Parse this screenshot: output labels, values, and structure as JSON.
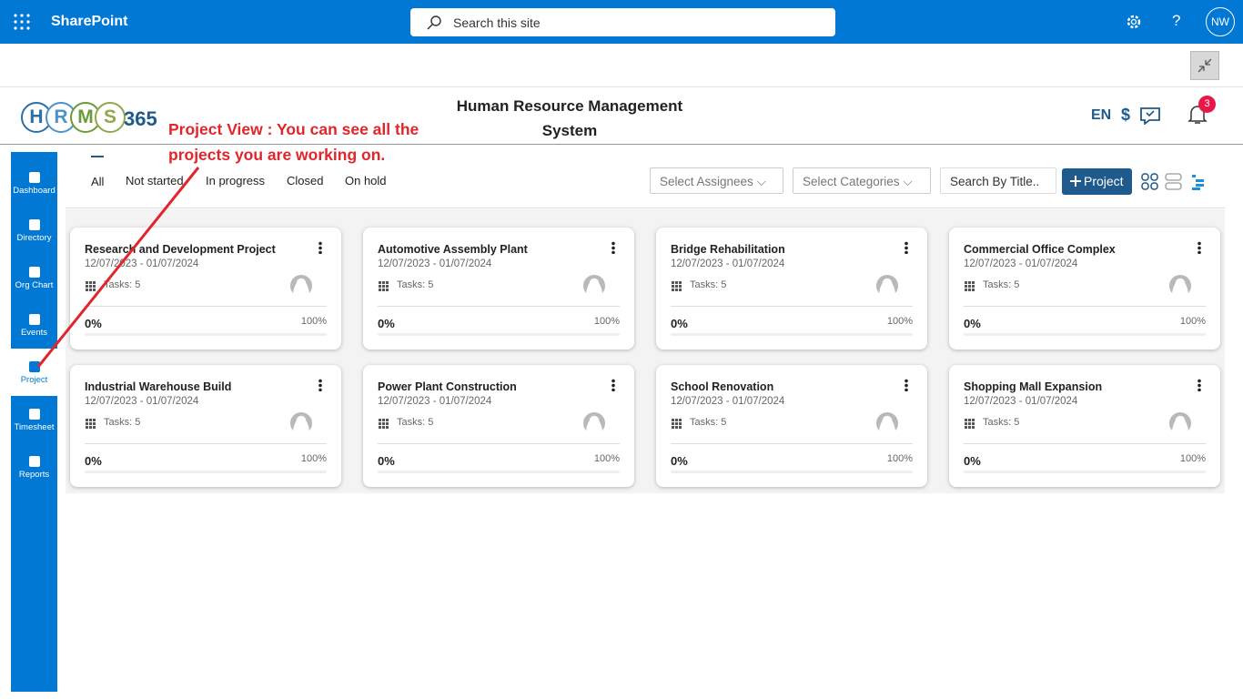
{
  "topbar": {
    "app": "SharePoint",
    "search": "Search this site",
    "user": "NW"
  },
  "header": {
    "logo_letters": [
      "H",
      "R",
      "M",
      "S"
    ],
    "logo_num": "365",
    "title": "Human Resource Management System",
    "lang": "EN",
    "currency": "$",
    "notifications": "3"
  },
  "annotation": "Project View : You can see all the projects you are working on.",
  "sidebar": [
    "Dashboard",
    "Directory",
    "Org Chart",
    "Events",
    "Project",
    "Timesheet",
    "Reports"
  ],
  "tabs": [
    "All",
    "Not started",
    "In progress",
    "Closed",
    "On hold"
  ],
  "filters": {
    "assignees": "Select Assignees",
    "categories": "Select Categories",
    "search": "Search By Title..",
    "add": "Project"
  },
  "projects": [
    {
      "title": "Research and Development Project",
      "dates": "12/07/2023 - 01/07/2024",
      "tasks": "Tasks: 5",
      "progress": "0%",
      "target": "100%"
    },
    {
      "title": "Automotive Assembly Plant",
      "dates": "12/07/2023 - 01/07/2024",
      "tasks": "Tasks: 5",
      "progress": "0%",
      "target": "100%"
    },
    {
      "title": "Bridge Rehabilitation",
      "dates": "12/07/2023 - 01/07/2024",
      "tasks": "Tasks: 5",
      "progress": "0%",
      "target": "100%"
    },
    {
      "title": "Commercial Office Complex",
      "dates": "12/07/2023 - 01/07/2024",
      "tasks": "Tasks: 5",
      "progress": "0%",
      "target": "100%"
    },
    {
      "title": "Industrial Warehouse Build",
      "dates": "12/07/2023 - 01/07/2024",
      "tasks": "Tasks: 5",
      "progress": "0%",
      "target": "100%"
    },
    {
      "title": "Power Plant Construction",
      "dates": "12/07/2023 - 01/07/2024",
      "tasks": "Tasks: 5",
      "progress": "0%",
      "target": "100%"
    },
    {
      "title": "School Renovation",
      "dates": "12/07/2023 - 01/07/2024",
      "tasks": "Tasks: 5",
      "progress": "0%",
      "target": "100%"
    },
    {
      "title": "Shopping Mall Expansion",
      "dates": "12/07/2023 - 01/07/2024",
      "tasks": "Tasks: 5",
      "progress": "0%",
      "target": "100%"
    }
  ]
}
